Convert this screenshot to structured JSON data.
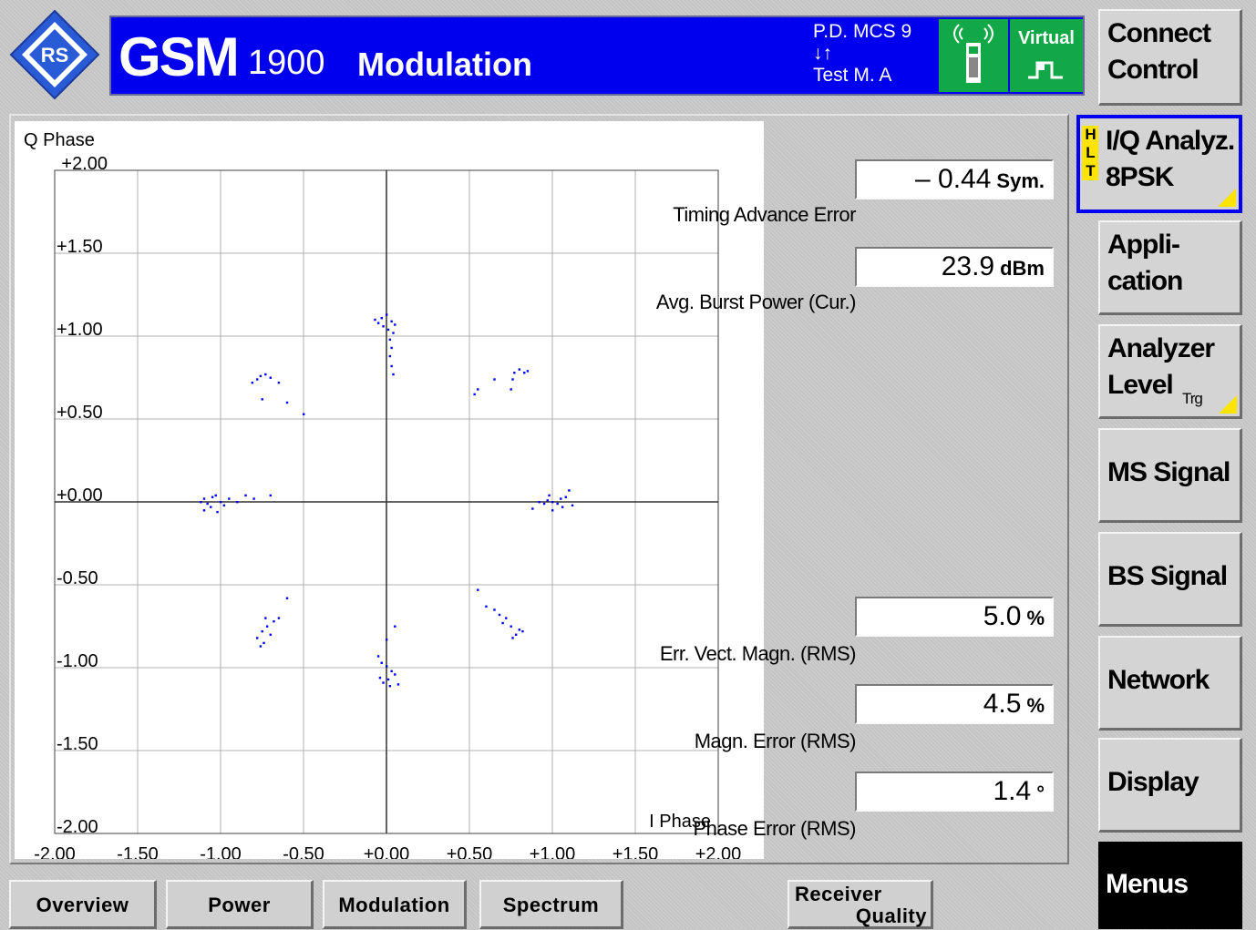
{
  "header": {
    "gsm": "GSM",
    "band": "1900",
    "mode": "Modulation",
    "status_line1": "P.D. MCS 9",
    "status_line2": "↓↑",
    "status_line3": "Test M. A",
    "virtual_label": "Virtual"
  },
  "softkeys": {
    "connect": [
      "Connect",
      "Control"
    ],
    "iq": [
      "I/Q Analyz.",
      "8PSK"
    ],
    "hlt": [
      "H",
      "L",
      "T"
    ],
    "application": [
      "Appli-",
      "cation"
    ],
    "analyzer": [
      "Analyzer",
      "Level"
    ],
    "analyzer_sub": "Trg",
    "ms_signal": "MS Signal",
    "bs_signal": "BS Signal",
    "network": "Network",
    "display": "Display",
    "menus": "Menus"
  },
  "readouts": {
    "timing": {
      "value": "– 0.44",
      "unit": "Sym.",
      "label": "Timing Advance Error"
    },
    "power": {
      "value": "23.9",
      "unit": "dBm",
      "label": "Avg. Burst Power (Cur.)"
    },
    "evm": {
      "value": "5.0",
      "unit": "%",
      "label": "Err. Vect. Magn. (RMS)"
    },
    "magn": {
      "value": "4.5",
      "unit": "%",
      "label": "Magn. Error (RMS)"
    },
    "phase": {
      "value": "1.4",
      "unit": "°",
      "label": "Phase Error (RMS)"
    }
  },
  "tabs": {
    "overview": "Overview",
    "power": "Power",
    "modulation": "Modulation",
    "spectrum": "Spectrum",
    "receiver": [
      "Receiver",
      "Quality"
    ]
  },
  "colors": {
    "title_bg": "#0000ee",
    "status_green": "#12a848",
    "points": "#0000ff",
    "corner_marker": "#ffe400"
  },
  "chart_data": {
    "type": "scatter",
    "title": "",
    "xlabel": "I Phase",
    "ylabel": "Q Phase",
    "xlim": [
      -2.0,
      2.0
    ],
    "ylim": [
      -2.0,
      2.0
    ],
    "grid": true,
    "x_ticks": [
      "-2.00",
      "-1.50",
      "-1.00",
      "-0.50",
      "+0.00",
      "+0.50",
      "+1.00",
      "+1.50",
      "+2.00"
    ],
    "y_ticks": [
      "+2.00",
      "+1.50",
      "+1.00",
      "+0.50",
      "+0.00",
      "-0.50",
      "-1.00",
      "-1.50",
      "-2.00"
    ],
    "series": [
      {
        "points": [
          [
            -0.03,
            1.11
          ],
          [
            -0.07,
            1.1
          ],
          [
            0.0,
            1.13
          ],
          [
            0.03,
            1.09
          ],
          [
            -0.02,
            1.06
          ],
          [
            0.01,
            1.04
          ],
          [
            0.04,
            1.02
          ],
          [
            0.02,
            0.98
          ],
          [
            0.03,
            0.93
          ],
          [
            0.02,
            0.88
          ],
          [
            0.03,
            0.82
          ],
          [
            0.04,
            0.77
          ],
          [
            -0.05,
            1.08
          ],
          [
            0.05,
            1.07
          ],
          [
            0.8,
            0.8
          ],
          [
            0.77,
            0.78
          ],
          [
            0.76,
            0.74
          ],
          [
            0.75,
            0.68
          ],
          [
            0.65,
            0.74
          ],
          [
            0.55,
            0.68
          ],
          [
            0.53,
            0.65
          ],
          [
            0.83,
            0.78
          ],
          [
            0.85,
            0.79
          ],
          [
            -0.76,
            0.76
          ],
          [
            -0.73,
            0.77
          ],
          [
            -0.78,
            0.74
          ],
          [
            -0.81,
            0.72
          ],
          [
            -0.7,
            0.75
          ],
          [
            -0.65,
            0.72
          ],
          [
            -0.6,
            0.6
          ],
          [
            -0.5,
            0.53
          ],
          [
            -0.75,
            0.62
          ],
          [
            -1.1,
            0.02
          ],
          [
            -1.05,
            0.03
          ],
          [
            -1.0,
            0.0
          ],
          [
            -1.08,
            -0.01
          ],
          [
            -1.12,
            0.0
          ],
          [
            -1.03,
            0.04
          ],
          [
            -0.95,
            0.02
          ],
          [
            -0.85,
            0.04
          ],
          [
            -0.8,
            0.02
          ],
          [
            -0.7,
            0.04
          ],
          [
            -1.06,
            -0.03
          ],
          [
            -0.98,
            -0.02
          ],
          [
            -1.1,
            -0.05
          ],
          [
            -1.02,
            -0.06
          ],
          [
            -0.9,
            0.0
          ],
          [
            1.0,
            0.0
          ],
          [
            0.97,
            0.01
          ],
          [
            1.03,
            -0.01
          ],
          [
            0.95,
            -0.01
          ],
          [
            1.05,
            0.02
          ],
          [
            0.92,
            0.0
          ],
          [
            1.08,
            0.03
          ],
          [
            1.1,
            0.07
          ],
          [
            1.12,
            -0.02
          ],
          [
            0.88,
            -0.04
          ],
          [
            1.0,
            -0.05
          ],
          [
            0.98,
            0.04
          ],
          [
            1.06,
            -0.03
          ],
          [
            -0.75,
            -0.78
          ],
          [
            -0.72,
            -0.75
          ],
          [
            -0.78,
            -0.82
          ],
          [
            -0.74,
            -0.85
          ],
          [
            -0.7,
            -0.8
          ],
          [
            -0.68,
            -0.72
          ],
          [
            -0.65,
            -0.7
          ],
          [
            -0.6,
            -0.58
          ],
          [
            -0.76,
            -0.87
          ],
          [
            -0.73,
            -0.7
          ],
          [
            0.0,
            -0.99
          ],
          [
            -0.03,
            -0.97
          ],
          [
            0.03,
            -1.02
          ],
          [
            0.01,
            -1.07
          ],
          [
            0.05,
            -1.04
          ],
          [
            -0.02,
            -1.09
          ],
          [
            -0.05,
            -0.93
          ],
          [
            0.0,
            -0.83
          ],
          [
            0.05,
            -0.75
          ],
          [
            0.02,
            -1.11
          ],
          [
            -0.04,
            -1.06
          ],
          [
            0.07,
            -1.1
          ],
          [
            0.75,
            -0.75
          ],
          [
            0.72,
            -0.7
          ],
          [
            0.78,
            -0.8
          ],
          [
            0.7,
            -0.73
          ],
          [
            0.8,
            -0.77
          ],
          [
            0.65,
            -0.65
          ],
          [
            0.6,
            -0.63
          ],
          [
            0.55,
            -0.53
          ],
          [
            0.82,
            -0.78
          ],
          [
            0.76,
            -0.82
          ],
          [
            0.68,
            -0.68
          ]
        ]
      }
    ]
  }
}
